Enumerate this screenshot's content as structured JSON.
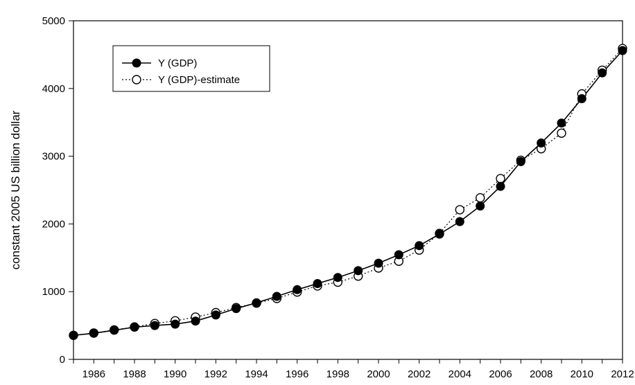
{
  "chart_data": {
    "type": "line",
    "title": "",
    "xlabel": "",
    "ylabel": "constant 2005 US billion dollar",
    "xlim": [
      1985,
      2012
    ],
    "ylim": [
      0,
      5000
    ],
    "xticks": [
      1986,
      1988,
      1990,
      1992,
      1994,
      1996,
      1998,
      2000,
      2002,
      2004,
      2006,
      2008,
      2010,
      2012
    ],
    "yticks": [
      0,
      1000,
      2000,
      3000,
      4000,
      5000
    ],
    "grid": false,
    "legend_position": "top-left",
    "x": [
      1985,
      1986,
      1987,
      1988,
      1989,
      1990,
      1991,
      1992,
      1993,
      1994,
      1995,
      1996,
      1997,
      1998,
      1999,
      2000,
      2001,
      2002,
      2003,
      2004,
      2005,
      2006,
      2007,
      2008,
      2009,
      2010,
      2011,
      2012
    ],
    "series": [
      {
        "name": "Y (GDP)",
        "marker": "filled-circle",
        "line": "solid",
        "color": "#000000",
        "values": [
          355,
          385,
          430,
          475,
          500,
          520,
          565,
          655,
          750,
          835,
          930,
          1030,
          1120,
          1210,
          1310,
          1420,
          1545,
          1680,
          1850,
          2035,
          2265,
          2555,
          2920,
          3195,
          3490,
          3850,
          4230,
          4560
        ]
      },
      {
        "name": "Y (GDP)-estimate",
        "marker": "open-circle",
        "line": "dotted",
        "color": "#000000",
        "values": [
          355,
          390,
          435,
          480,
          530,
          570,
          625,
          690,
          765,
          830,
          900,
          995,
          1085,
          1140,
          1230,
          1350,
          1450,
          1615,
          1860,
          2210,
          2385,
          2670,
          2940,
          3110,
          3340,
          3920,
          4270,
          4590
        ]
      }
    ]
  }
}
